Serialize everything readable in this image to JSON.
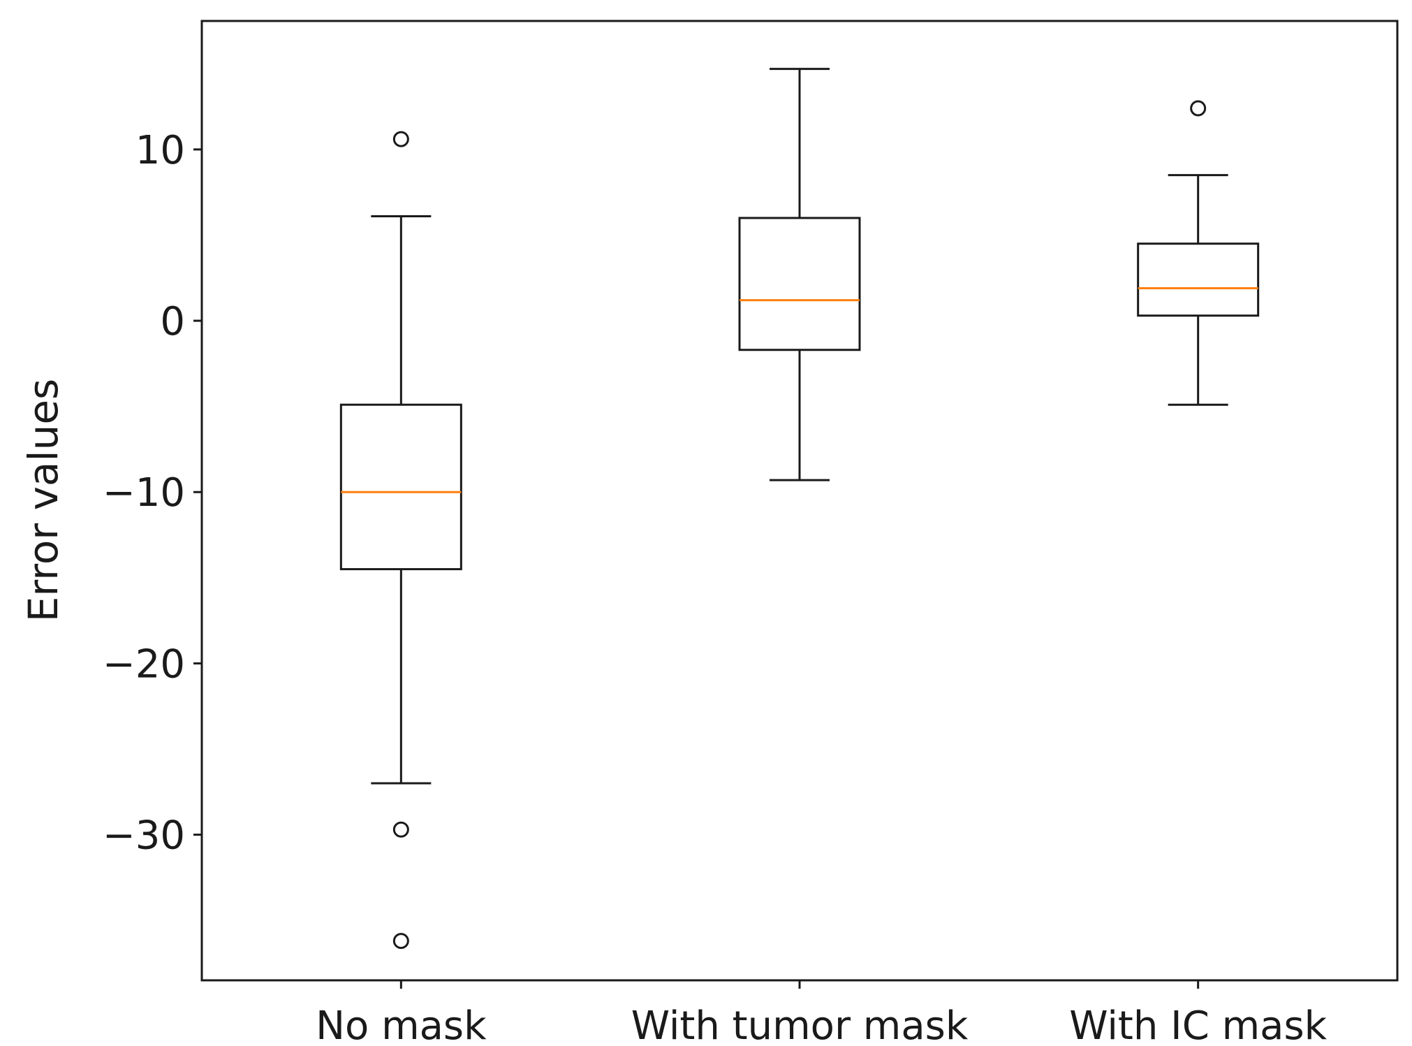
{
  "chart_data": {
    "type": "box",
    "title": "",
    "xlabel": "",
    "ylabel": "Error values",
    "ylim": [
      -38.5,
      17.5
    ],
    "yticks": [
      10,
      0,
      -10,
      -20,
      -30
    ],
    "ytick_labels": [
      "10",
      "0",
      "−10",
      "−20",
      "−30"
    ],
    "categories": [
      "No mask",
      "With tumor mask",
      "With IC mask"
    ],
    "grid": false,
    "legend": "none",
    "colors": {
      "box": "#1a1a1a",
      "median": "#ff7f0e",
      "axes": "#1a1a1a"
    },
    "boxes": [
      {
        "name": "No mask",
        "whisker_low": -27.0,
        "q1": -14.5,
        "median": -10.0,
        "q3": -4.9,
        "whisker_high": 6.1,
        "outliers": [
          10.6,
          -29.7,
          -36.2
        ]
      },
      {
        "name": "With tumor mask",
        "whisker_low": -9.3,
        "q1": -1.7,
        "median": 1.2,
        "q3": 6.0,
        "whisker_high": 14.7,
        "outliers": []
      },
      {
        "name": "With IC mask",
        "whisker_low": -4.9,
        "q1": 0.3,
        "median": 1.9,
        "q3": 4.5,
        "whisker_high": 8.5,
        "outliers": [
          12.4
        ]
      }
    ]
  }
}
